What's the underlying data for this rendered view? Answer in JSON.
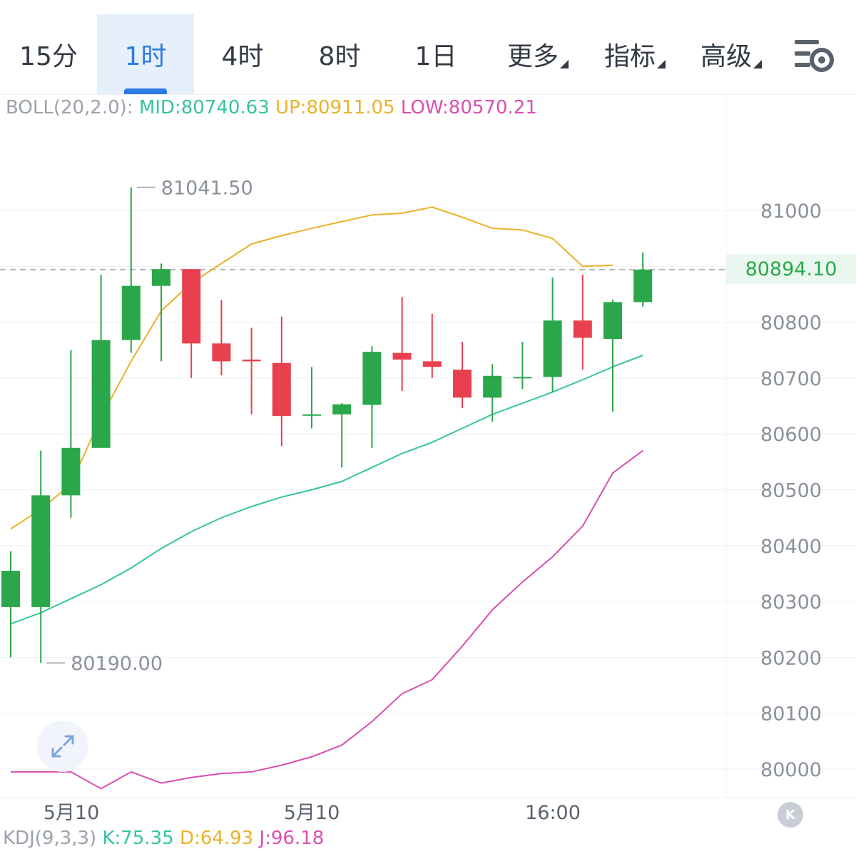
{
  "toolbar": {
    "tabs": [
      {
        "label": "15分",
        "active": false,
        "dropdown": false
      },
      {
        "label": "1时",
        "active": true,
        "dropdown": false
      },
      {
        "label": "4时",
        "active": false,
        "dropdown": false
      },
      {
        "label": "8时",
        "active": false,
        "dropdown": false
      },
      {
        "label": "1日",
        "active": false,
        "dropdown": false
      },
      {
        "label": "更多",
        "active": false,
        "dropdown": true
      },
      {
        "label": "指标",
        "active": false,
        "dropdown": true
      },
      {
        "label": "高级",
        "active": false,
        "dropdown": true
      }
    ],
    "settings_icon": "chart-settings-gear-icon"
  },
  "boll": {
    "label": "BOLL(20,2.0):",
    "mid": "MID:80740.63",
    "up": "UP:80911.05",
    "low": "LOW:80570.21"
  },
  "kdj": {
    "label": "KDJ(9,3,3)",
    "k": "K:75.35",
    "d": "D:64.93",
    "j": "J:96.18"
  },
  "colors": {
    "up_candle": "#2aa74a",
    "down_candle": "#e8404f",
    "mid_line": "#36c4a1",
    "upper_line": "#eab12a",
    "lower_line": "#d84fb0",
    "accent": "#2c7be5"
  },
  "current_price": "80894.10",
  "expand_icon": "expand-arrows-icon",
  "k_button_icon": "k-line-icon",
  "k_button_label": "K",
  "chart_data": {
    "type": "candlestick",
    "y_ticks": [
      81000,
      80900,
      80800,
      80700,
      80600,
      80500,
      80400,
      80300,
      80200,
      80100,
      80000
    ],
    "y_tick_labels": [
      "81000",
      "",
      "80800",
      "80700",
      "80600",
      "80500",
      "80400",
      "80300",
      "80200",
      "80100",
      "80000"
    ],
    "ylim": [
      79980,
      81090
    ],
    "x_labels": [
      {
        "index": 2,
        "label": "5月10"
      },
      {
        "index": 10,
        "label": "5月10"
      },
      {
        "index": 18,
        "label": "16:00"
      }
    ],
    "candles": [
      {
        "o": 80290,
        "h": 80390,
        "l": 80200,
        "c": 80355
      },
      {
        "o": 80290,
        "h": 80570,
        "l": 80190,
        "c": 80490
      },
      {
        "o": 80490,
        "h": 80750,
        "l": 80450,
        "c": 80575
      },
      {
        "o": 80575,
        "h": 80885,
        "l": 80575,
        "c": 80768
      },
      {
        "o": 80768,
        "h": 81041.5,
        "l": 80745,
        "c": 80865
      },
      {
        "o": 80865,
        "h": 80905,
        "l": 80730,
        "c": 80895
      },
      {
        "o": 80895,
        "h": 80895,
        "l": 80700,
        "c": 80762
      },
      {
        "o": 80762,
        "h": 80840,
        "l": 80705,
        "c": 80730
      },
      {
        "o": 80733,
        "h": 80790,
        "l": 80635,
        "c": 80730
      },
      {
        "o": 80727,
        "h": 80810,
        "l": 80578,
        "c": 80632
      },
      {
        "o": 80635,
        "h": 80720,
        "l": 80610,
        "c": 80635
      },
      {
        "o": 80635,
        "h": 80655,
        "l": 80540,
        "c": 80653
      },
      {
        "o": 80652,
        "h": 80757,
        "l": 80575,
        "c": 80747
      },
      {
        "o": 80745,
        "h": 80845,
        "l": 80677,
        "c": 80733
      },
      {
        "o": 80730,
        "h": 80815,
        "l": 80700,
        "c": 80720
      },
      {
        "o": 80715,
        "h": 80765,
        "l": 80646,
        "c": 80665
      },
      {
        "o": 80665,
        "h": 80725,
        "l": 80622,
        "c": 80704
      },
      {
        "o": 80702,
        "h": 80765,
        "l": 80680,
        "c": 80702
      },
      {
        "o": 80702,
        "h": 80880,
        "l": 80674,
        "c": 80803
      },
      {
        "o": 80803,
        "h": 80885,
        "l": 80715,
        "c": 80772
      },
      {
        "o": 80770,
        "h": 80840,
        "l": 80640,
        "c": 80836
      },
      {
        "o": 80836,
        "h": 80925,
        "l": 80828,
        "c": 80894.1
      }
    ],
    "upper_band": [
      80430,
      80465,
      80510,
      80630,
      80730,
      80820,
      80870,
      80905,
      80940,
      80955,
      80968,
      80980,
      80992,
      80995,
      81006,
      80988,
      80968,
      80965,
      80950,
      80900,
      80902,
      null
    ],
    "mid_band": [
      80260,
      80280,
      80305,
      80330,
      80360,
      80395,
      80425,
      80450,
      80470,
      80487,
      80500,
      80515,
      80540,
      80565,
      80585,
      80610,
      80635,
      80655,
      80675,
      80697,
      80720,
      80740.63
    ],
    "lower_band": [
      79995,
      79995,
      79995,
      79965,
      79995,
      79975,
      79985,
      79992,
      79995,
      80007,
      80022,
      80043,
      80085,
      80135,
      80160,
      80220,
      80285,
      80335,
      80380,
      80435,
      80530,
      80570.21
    ],
    "high_marker": "81041.50",
    "low_marker": "80190.00",
    "grid": true
  }
}
